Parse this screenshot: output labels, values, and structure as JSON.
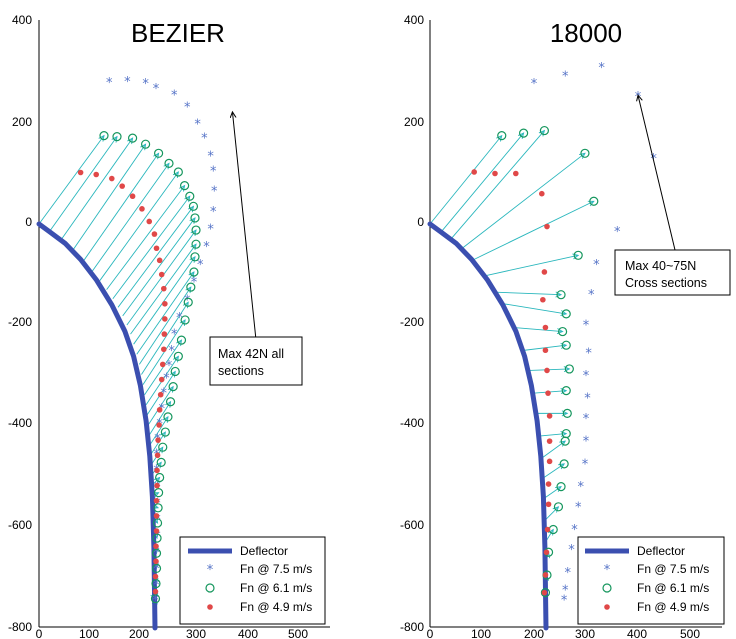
{
  "colors": {
    "deflector": "#3b4fb0",
    "arrow": "#2ab7bd",
    "star": "#5573c7",
    "circle": "#15965d",
    "dot": "#e04848"
  },
  "legend": {
    "deflector": "Deflector",
    "fn75": "Fn @ 7.5 m/s",
    "fn61": "Fn @ 6.1 m/s",
    "fn49": "Fn @ 4.9 m/s"
  },
  "chart_data": [
    {
      "type": "scatter",
      "title": "BEZIER",
      "xlim": [
        0,
        500
      ],
      "ylim": [
        -800,
        400
      ],
      "xticks": [
        "0",
        "100",
        "200",
        "300",
        "400",
        "500"
      ],
      "yticks": [
        "-800",
        "-600",
        "-400",
        "-200",
        "0",
        "200",
        "400"
      ],
      "annotation": {
        "lines": [
          "Max 42N all",
          "sections"
        ],
        "target": [
          372,
          222
        ]
      },
      "deflector": [
        [
          0,
          0
        ],
        [
          20,
          -15
        ],
        [
          50,
          -38
        ],
        [
          80,
          -70
        ],
        [
          110,
          -110
        ],
        [
          140,
          -160
        ],
        [
          165,
          -212
        ],
        [
          182,
          -262
        ],
        [
          195,
          -320
        ],
        [
          206,
          -390
        ],
        [
          213,
          -460
        ],
        [
          218,
          -540
        ],
        [
          221,
          -640
        ],
        [
          223,
          -800
        ]
      ],
      "series": [
        {
          "name": "Fn @ 7.5 m/s",
          "marker": "star",
          "points": [
            [
              135,
              280
            ],
            [
              170,
              282
            ],
            [
              205,
              278
            ],
            [
              225,
              268
            ],
            [
              260,
              255
            ],
            [
              285,
              232
            ],
            [
              305,
              198
            ],
            [
              318,
              170
            ],
            [
              330,
              135
            ],
            [
              335,
              105
            ],
            [
              337,
              65
            ],
            [
              335,
              25
            ],
            [
              330,
              -10
            ],
            [
              322,
              -45
            ],
            [
              310,
              -80
            ],
            [
              298,
              -115
            ],
            [
              285,
              -150
            ],
            [
              270,
              -185
            ],
            [
              260,
              -218
            ],
            [
              255,
              -250
            ],
            [
              250,
              -280
            ],
            [
              245,
              -305
            ],
            [
              240,
              -335
            ],
            [
              236,
              -365
            ],
            [
              232,
              -395
            ],
            [
              228,
              -425
            ],
            [
              226,
              -455
            ],
            [
              226,
              -487
            ],
            [
              228,
              -520
            ],
            [
              228,
              -552
            ],
            [
              228,
              -585
            ],
            [
              228,
              -618
            ],
            [
              226,
              -650
            ],
            [
              226,
              -682
            ],
            [
              226,
              -715
            ],
            [
              224,
              -745
            ]
          ]
        },
        {
          "name": "Fn @ 6.1 m/s",
          "marker": "circle",
          "points": [
            [
              125,
              175
            ],
            [
              150,
              173
            ],
            [
              180,
              170
            ],
            [
              205,
              158
            ],
            [
              230,
              140
            ],
            [
              250,
              120
            ],
            [
              268,
              103
            ],
            [
              280,
              76
            ],
            [
              290,
              55
            ],
            [
              297,
              35
            ],
            [
              300,
              12
            ],
            [
              302,
              -12
            ],
            [
              302,
              -40
            ],
            [
              300,
              -65
            ],
            [
              298,
              -95
            ],
            [
              292,
              -125
            ],
            [
              287,
              -155
            ],
            [
              281,
              -190
            ],
            [
              274,
              -230
            ],
            [
              268,
              -262
            ],
            [
              262,
              -292
            ],
            [
              258,
              -322
            ],
            [
              253,
              -352
            ],
            [
              248,
              -382
            ],
            [
              243,
              -412
            ],
            [
              238,
              -442
            ],
            [
              235,
              -472
            ],
            [
              232,
              -502
            ],
            [
              230,
              -532
            ],
            [
              229,
              -562
            ],
            [
              228,
              -592
            ],
            [
              227,
              -622
            ],
            [
              226,
              -652
            ],
            [
              226,
              -682
            ],
            [
              225,
              -712
            ],
            [
              224,
              -742
            ]
          ]
        },
        {
          "name": "Fn @ 4.9 m/s",
          "marker": "dot",
          "points": [
            [
              80,
              102
            ],
            [
              110,
              98
            ],
            [
              140,
              90
            ],
            [
              160,
              75
            ],
            [
              180,
              55
            ],
            [
              198,
              30
            ],
            [
              212,
              5
            ],
            [
              222,
              -20
            ],
            [
              226,
              -48
            ],
            [
              232,
              -72
            ],
            [
              236,
              -100
            ],
            [
              240,
              -128
            ],
            [
              242,
              -158
            ],
            [
              242,
              -188
            ],
            [
              241,
              -218
            ],
            [
              240,
              -248
            ],
            [
              238,
              -278
            ],
            [
              236,
              -308
            ],
            [
              234,
              -338
            ],
            [
              232,
              -368
            ],
            [
              231,
              -398
            ],
            [
              229,
              -428
            ],
            [
              228,
              -458
            ],
            [
              227,
              -488
            ],
            [
              227,
              -518
            ],
            [
              226,
              -548
            ],
            [
              226,
              -578
            ],
            [
              226,
              -608
            ],
            [
              225,
              -638
            ],
            [
              225,
              -668
            ],
            [
              224,
              -698
            ],
            [
              224,
              -728
            ]
          ]
        }
      ],
      "arrows": [
        [
          0,
          0
        ],
        [
          20,
          -15
        ],
        [
          42,
          -32
        ],
        [
          65,
          -52
        ],
        [
          85,
          -74
        ],
        [
          102,
          -94
        ],
        [
          117,
          -112
        ],
        [
          130,
          -130
        ],
        [
          142,
          -148
        ],
        [
          152,
          -165
        ],
        [
          161,
          -182
        ],
        [
          169,
          -200
        ],
        [
          176,
          -218
        ],
        [
          182,
          -238
        ],
        [
          188,
          -258
        ],
        [
          193,
          -278
        ],
        [
          197,
          -298
        ],
        [
          200,
          -318
        ],
        [
          203,
          -338
        ],
        [
          206,
          -358
        ],
        [
          208,
          -378
        ],
        [
          210,
          -398
        ],
        [
          212,
          -418
        ],
        [
          213,
          -438
        ],
        [
          214,
          -458
        ],
        [
          215,
          -478
        ],
        [
          216,
          -498
        ],
        [
          217,
          -518
        ],
        [
          218,
          -538
        ],
        [
          218,
          -558
        ],
        [
          219,
          -578
        ],
        [
          219,
          -598
        ],
        [
          220,
          -618
        ],
        [
          220,
          -638
        ],
        [
          220,
          -658
        ],
        [
          221,
          -678
        ],
        [
          221,
          -698
        ],
        [
          221,
          -718
        ],
        [
          222,
          -738
        ],
        [
          222,
          -758
        ]
      ]
    },
    {
      "type": "scatter",
      "title": "18000",
      "xlim": [
        0,
        500
      ],
      "ylim": [
        -800,
        400
      ],
      "xticks": [
        "0",
        "100",
        "200",
        "300",
        "400",
        "500"
      ],
      "yticks": [
        "-800",
        "-600",
        "-400",
        "-200",
        "0",
        "200",
        "400"
      ],
      "annotation": {
        "lines": [
          "Max 40~75N",
          "Cross sections"
        ],
        "target": [
          400,
          255
        ]
      },
      "deflector": [
        [
          0,
          0
        ],
        [
          20,
          -15
        ],
        [
          50,
          -38
        ],
        [
          80,
          -70
        ],
        [
          110,
          -110
        ],
        [
          140,
          -160
        ],
        [
          165,
          -212
        ],
        [
          182,
          -262
        ],
        [
          195,
          -320
        ],
        [
          206,
          -390
        ],
        [
          213,
          -460
        ],
        [
          218,
          -540
        ],
        [
          221,
          -640
        ],
        [
          223,
          -800
        ]
      ],
      "series": [
        {
          "name": "Fn @ 7.5 m/s",
          "marker": "star",
          "points": [
            [
              200,
              278
            ],
            [
              260,
              293
            ],
            [
              330,
              310
            ],
            [
              400,
              252
            ],
            [
              430,
              130
            ],
            [
              360,
              -15
            ],
            [
              320,
              -80
            ],
            [
              310,
              -140
            ],
            [
              300,
              -200
            ],
            [
              305,
              -255
            ],
            [
              300,
              -300
            ],
            [
              303,
              -345
            ],
            [
              300,
              -385
            ],
            [
              300,
              -430
            ],
            [
              298,
              -475
            ],
            [
              290,
              -520
            ],
            [
              285,
              -560
            ],
            [
              278,
              -605
            ],
            [
              272,
              -645
            ],
            [
              265,
              -690
            ],
            [
              260,
              -725
            ],
            [
              258,
              -745
            ]
          ]
        },
        {
          "name": "Fn @ 6.1 m/s",
          "marker": "circle",
          "points": [
            [
              138,
              175
            ],
            [
              180,
              180
            ],
            [
              220,
              185
            ],
            [
              298,
              140
            ],
            [
              315,
              45
            ],
            [
              285,
              -62
            ],
            [
              252,
              -140
            ],
            [
              262,
              -178
            ],
            [
              255,
              -213
            ],
            [
              262,
              -240
            ],
            [
              268,
              -287
            ],
            [
              262,
              -330
            ],
            [
              264,
              -375
            ],
            [
              262,
              -415
            ],
            [
              260,
              -430
            ],
            [
              258,
              -475
            ],
            [
              252,
              -520
            ],
            [
              247,
              -560
            ],
            [
              237,
              -605
            ],
            [
              228,
              -650
            ],
            [
              225,
              -695
            ],
            [
              222,
              -730
            ]
          ]
        },
        {
          "name": "Fn @ 4.9 m/s",
          "marker": "dot",
          "points": [
            [
              85,
              103
            ],
            [
              125,
              100
            ],
            [
              165,
              100
            ],
            [
              215,
              60
            ],
            [
              225,
              -5
            ],
            [
              220,
              -95
            ],
            [
              217,
              -150
            ],
            [
              222,
              -205
            ],
            [
              222,
              -250
            ],
            [
              225,
              -290
            ],
            [
              227,
              -335
            ],
            [
              230,
              -380
            ],
            [
              230,
              -430
            ],
            [
              230,
              -470
            ],
            [
              228,
              -515
            ],
            [
              228,
              -555
            ],
            [
              226,
              -605
            ],
            [
              224,
              -650
            ],
            [
              222,
              -695
            ],
            [
              220,
              -730
            ]
          ]
        }
      ],
      "arrows": [
        [
          0,
          0
        ],
        [
          22,
          -15
        ],
        [
          40,
          -30
        ],
        [
          62,
          -48
        ],
        [
          85,
          -70
        ],
        [
          108,
          -102
        ],
        [
          125,
          -135
        ],
        [
          142,
          -158
        ],
        [
          162,
          -205
        ],
        [
          182,
          -250
        ],
        [
          192,
          -290
        ],
        [
          198,
          -335
        ],
        [
          205,
          -375
        ],
        [
          210,
          -420
        ],
        [
          213,
          -465
        ],
        [
          215,
          -505
        ],
        [
          217,
          -545
        ],
        [
          218,
          -590
        ],
        [
          219,
          -635
        ],
        [
          220,
          -680
        ],
        [
          220,
          -720
        ]
      ]
    }
  ]
}
